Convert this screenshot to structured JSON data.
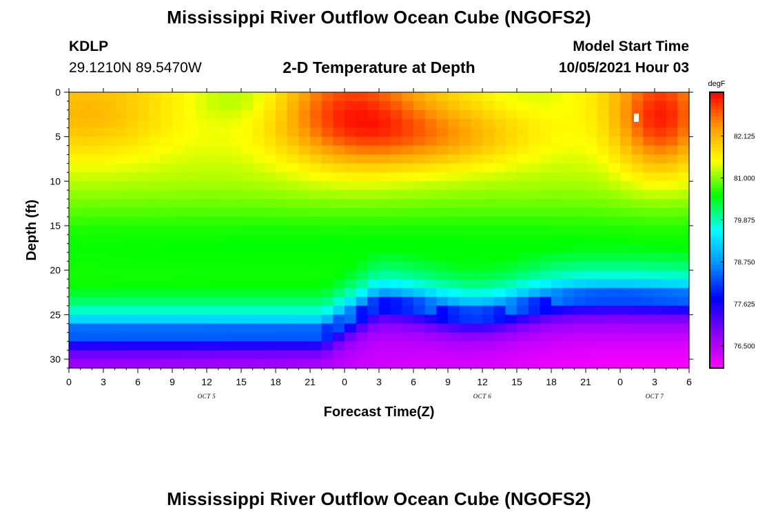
{
  "header": {
    "title_top": "Mississippi River Outflow Ocean Cube (NGOFS2)",
    "station_id": "KDLP",
    "station_coords": "29.1210N  89.5470W",
    "plot_title": "2-D Temperature at Depth",
    "model_start_label": "Model Start Time",
    "model_start_value": "10/05/2021 Hour 03",
    "title_bottom": "Mississippi River Outflow Ocean Cube (NGOFS2)"
  },
  "chart_data": {
    "type": "heatmap",
    "title": "2-D Temperature at Depth",
    "xlabel": "Forecast Time(Z)",
    "ylabel": "Depth (ft)",
    "x_tick_labels": [
      "0",
      "3",
      "6",
      "9",
      "12",
      "15",
      "18",
      "21",
      "0",
      "3",
      "6",
      "9",
      "12",
      "15",
      "18",
      "21",
      "0",
      "3",
      "6"
    ],
    "x_range_hours": [
      0,
      54
    ],
    "y_ticks": [
      0,
      5,
      10,
      15,
      20,
      25,
      30
    ],
    "y_range": [
      0,
      31
    ],
    "y_reversed": true,
    "date_labels": [
      {
        "text": "OCT 5",
        "hour": 12
      },
      {
        "text": "OCT 6",
        "hour": 36
      },
      {
        "text": "OCT 7",
        "hour": 51
      }
    ],
    "colorbar": {
      "unit": "degF",
      "min": 75.9,
      "max": 83.3,
      "tick_labels": [
        "82.125",
        "81.000",
        "79.875",
        "78.750",
        "77.625",
        "76.500"
      ],
      "tick_values": [
        82.125,
        81.0,
        79.875,
        78.75,
        77.625,
        76.5
      ],
      "colors": [
        "#ff00ff",
        "#8a00ff",
        "#0000ff",
        "#0090ff",
        "#00ffff",
        "#00ff00",
        "#ffff00",
        "#ff9900",
        "#ff0000"
      ]
    },
    "field_description_points": {
      "warm_core_1": {
        "hour": 24.5,
        "depth": 2.5,
        "temp": 83.0
      },
      "warm_core_2": {
        "hour": 51.5,
        "depth": 3.0,
        "temp": 83.2
      },
      "warm_core_0": {
        "hour": 1.5,
        "depth": 3.0,
        "temp": 82.1
      },
      "cold_bottom_value": 76.2
    }
  }
}
